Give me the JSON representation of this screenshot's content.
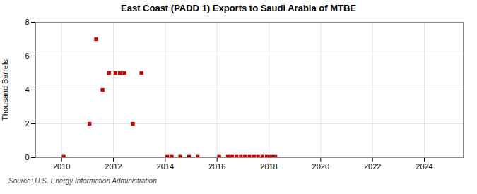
{
  "chart_data": {
    "type": "scatter",
    "title": "East Coast (PADD 1) Exports to Saudi Arabia of MTBE",
    "ylabel": "Thousand Barrels",
    "source": "Source: U.S. Energy Information Administration",
    "color": "#cc0000",
    "marker": "square",
    "grid": true,
    "xlim": [
      2009.0,
      2025.5
    ],
    "ylim": [
      0,
      8
    ],
    "xticks": [
      2010,
      2012,
      2014,
      2016,
      2018,
      2020,
      2022,
      2024
    ],
    "yticks": [
      0,
      2,
      4,
      6,
      8
    ],
    "x": [
      2010.08,
      2011.08,
      2011.33,
      2011.58,
      2011.83,
      2012.08,
      2012.25,
      2012.42,
      2012.75,
      2013.08,
      2014.08,
      2014.25,
      2014.58,
      2014.92,
      2015.25,
      2016.08,
      2016.42,
      2016.58,
      2016.75,
      2016.92,
      2017.08,
      2017.25,
      2017.42,
      2017.58,
      2017.75,
      2017.92,
      2018.08,
      2018.25
    ],
    "values": [
      0.05,
      2,
      7,
      4,
      5,
      5,
      5,
      5,
      2,
      5,
      0.05,
      0.05,
      0.05,
      0.05,
      0.05,
      0.05,
      0.05,
      0.05,
      0.05,
      0.05,
      0.05,
      0.05,
      0.05,
      0.05,
      0.05,
      0.05,
      0.05,
      0.05
    ]
  }
}
